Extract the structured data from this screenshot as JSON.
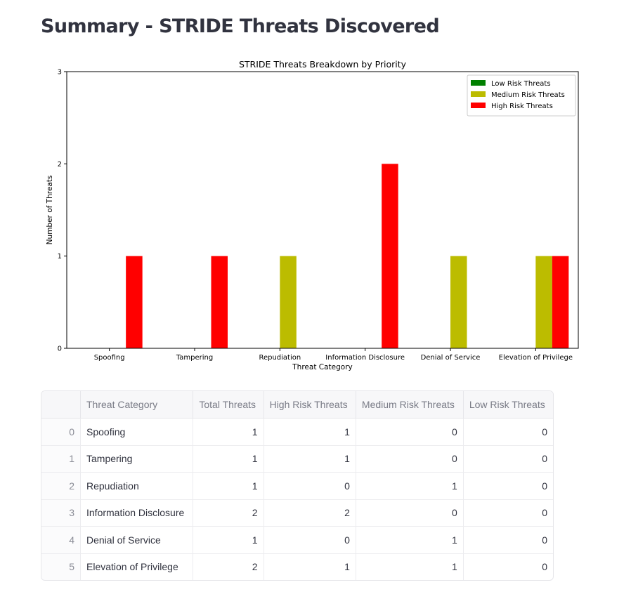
{
  "page": {
    "title": "Summary - STRIDE Threats Discovered"
  },
  "chart_data": {
    "type": "bar",
    "title": "STRIDE Threats Breakdown by Priority",
    "xlabel": "Threat Category",
    "ylabel": "Number of Threats",
    "categories": [
      "Spoofing",
      "Tampering",
      "Repudiation",
      "Information Disclosure",
      "Denial of Service",
      "Elevation of Privilege"
    ],
    "series": [
      {
        "name": "Low Risk Threats",
        "color": "#008000",
        "values": [
          0,
          0,
          0,
          0,
          0,
          0
        ]
      },
      {
        "name": "Medium Risk Threats",
        "color": "#bcbc00",
        "values": [
          0,
          0,
          1,
          0,
          1,
          1
        ]
      },
      {
        "name": "High Risk Threats",
        "color": "#ff0000",
        "values": [
          1,
          1,
          0,
          2,
          0,
          1
        ]
      }
    ],
    "ylim": [
      0,
      3
    ],
    "yticks": [
      "0",
      "1",
      "2",
      "3"
    ],
    "legend_position": "upper right",
    "grid": false
  },
  "table": {
    "columns": [
      "",
      "Threat Category",
      "Total Threats",
      "High Risk Threats",
      "Medium Risk Threats",
      "Low Risk Threats"
    ],
    "rows": [
      [
        "0",
        "Spoofing",
        "1",
        "1",
        "0",
        "0"
      ],
      [
        "1",
        "Tampering",
        "1",
        "1",
        "0",
        "0"
      ],
      [
        "2",
        "Repudiation",
        "1",
        "0",
        "1",
        "0"
      ],
      [
        "3",
        "Information Disclosure",
        "2",
        "2",
        "0",
        "0"
      ],
      [
        "4",
        "Denial of Service",
        "1",
        "0",
        "1",
        "0"
      ],
      [
        "5",
        "Elevation of Privilege",
        "2",
        "1",
        "1",
        "0"
      ]
    ]
  }
}
